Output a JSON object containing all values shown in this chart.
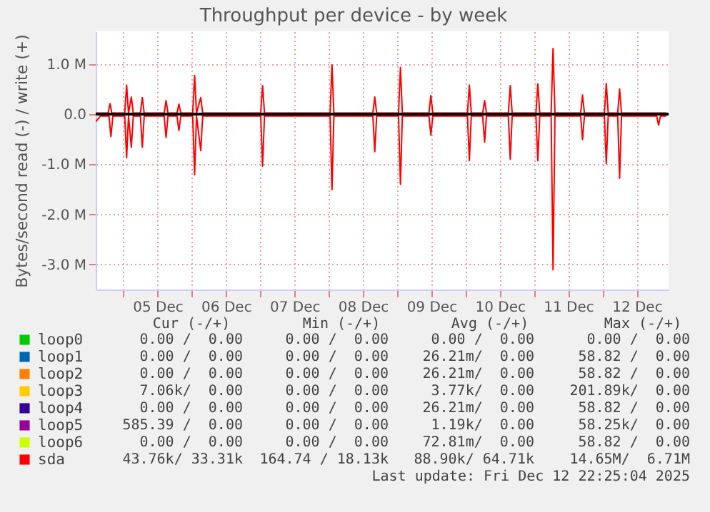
{
  "chart_data": {
    "type": "line",
    "title": "Throughput per device - by week",
    "ylabel": "Bytes/second read (-) / write (+)",
    "xlim": [
      "2025-12-04T14:20",
      "2025-12-12T23:10"
    ],
    "xticks": [
      {
        "value": "2025-12-05T00:00",
        "label": null
      },
      {
        "value": "2025-12-05T12:00",
        "label": "05 Dec"
      },
      {
        "value": "2025-12-06T00:00",
        "label": null
      },
      {
        "value": "2025-12-06T12:00",
        "label": "06 Dec"
      },
      {
        "value": "2025-12-07T00:00",
        "label": null
      },
      {
        "value": "2025-12-07T12:00",
        "label": "07 Dec"
      },
      {
        "value": "2025-12-08T00:00",
        "label": null
      },
      {
        "value": "2025-12-08T12:00",
        "label": "08 Dec"
      },
      {
        "value": "2025-12-09T00:00",
        "label": null
      },
      {
        "value": "2025-12-09T12:00",
        "label": "09 Dec"
      },
      {
        "value": "2025-12-10T00:00",
        "label": null
      },
      {
        "value": "2025-12-10T12:00",
        "label": "10 Dec"
      },
      {
        "value": "2025-12-11T00:00",
        "label": null
      },
      {
        "value": "2025-12-11T12:00",
        "label": "11 Dec"
      },
      {
        "value": "2025-12-12T00:00",
        "label": null
      },
      {
        "value": "2025-12-12T12:00",
        "label": "12 Dec"
      }
    ],
    "ylim": [
      -3500000,
      1650000
    ],
    "yticks": [
      {
        "value": -3000000,
        "label": "-3.0 M"
      },
      {
        "value": -2000000,
        "label": "-2.0 M"
      },
      {
        "value": -1000000,
        "label": "-1.0 M"
      },
      {
        "value": 0,
        "label": "0.0"
      },
      {
        "value": 1000000,
        "label": "1.0 M"
      }
    ],
    "grid": true,
    "legend": "bottom left",
    "ref_lines": [
      {
        "axis": "y",
        "value": 0,
        "color": "#000000"
      }
    ],
    "series": [
      {
        "name": "loop0",
        "color": "#00cc00"
      },
      {
        "name": "loop1",
        "color": "#0066b3"
      },
      {
        "name": "loop2",
        "color": "#ff8000"
      },
      {
        "name": "loop3",
        "color": "#ffcc00"
      },
      {
        "name": "loop4",
        "color": "#330099"
      },
      {
        "name": "loop5",
        "color": "#990099"
      },
      {
        "name": "loop6",
        "color": "#ccff00"
      },
      {
        "name": "sda",
        "color": "#ff0000",
        "x": [
          "2025-12-04T14:20",
          "2025-12-04T18:40",
          "2025-12-04T19:20",
          "2025-12-04T20:00",
          "2025-12-05T00:30",
          "2025-12-05T01:10",
          "2025-12-05T01:50",
          "2025-12-05T02:50",
          "2025-12-05T03:30",
          "2025-12-05T06:00",
          "2025-12-05T06:40",
          "2025-12-05T07:20",
          "2025-12-05T14:20",
          "2025-12-05T15:00",
          "2025-12-05T15:40",
          "2025-12-05T18:50",
          "2025-12-05T19:30",
          "2025-12-05T20:10",
          "2025-12-06T00:20",
          "2025-12-06T01:00",
          "2025-12-06T01:40",
          "2025-12-06T03:10",
          "2025-12-06T03:50",
          "2025-12-07T00:10",
          "2025-12-07T00:50",
          "2025-12-07T01:30",
          "2025-12-08T00:30",
          "2025-12-08T01:10",
          "2025-12-08T01:50",
          "2025-12-08T15:30",
          "2025-12-08T16:10",
          "2025-12-08T16:50",
          "2025-12-09T00:30",
          "2025-12-09T01:10",
          "2025-12-09T01:50",
          "2025-12-09T11:10",
          "2025-12-09T11:50",
          "2025-12-09T12:30",
          "2025-12-10T00:40",
          "2025-12-10T01:20",
          "2025-12-10T02:00",
          "2025-12-10T06:00",
          "2025-12-10T06:40",
          "2025-12-10T07:20",
          "2025-12-10T15:00",
          "2025-12-10T15:40",
          "2025-12-10T16:20",
          "2025-12-11T00:40",
          "2025-12-11T01:20",
          "2025-12-11T02:00",
          "2025-12-11T06:00",
          "2025-12-11T06:40",
          "2025-12-11T07:20",
          "2025-12-11T16:20",
          "2025-12-11T17:00",
          "2025-12-11T17:40",
          "2025-12-12T00:40",
          "2025-12-12T01:20",
          "2025-12-12T02:00",
          "2025-12-12T05:20",
          "2025-12-12T06:00",
          "2025-12-12T06:40",
          "2025-12-12T22:20"
        ],
        "values": [
          20000,
          20000,
          210000,
          20000,
          20000,
          580000,
          20000,
          340000,
          20000,
          20000,
          330000,
          20000,
          20000,
          270000,
          20000,
          20000,
          200000,
          20000,
          20000,
          770000,
          20000,
          330000,
          20000,
          20000,
          570000,
          20000,
          20000,
          980000,
          20000,
          20000,
          340000,
          20000,
          20000,
          930000,
          20000,
          20000,
          370000,
          20000,
          20000,
          580000,
          20000,
          20000,
          270000,
          20000,
          20000,
          570000,
          20000,
          20000,
          600000,
          20000,
          20000,
          1310000,
          20000,
          20000,
          380000,
          20000,
          20000,
          610000,
          20000,
          20000,
          500000,
          20000,
          20000
        ]
      },
      {
        "color": "#ff0000",
        "x": [
          "2025-12-04T14:20",
          "2025-12-04T16:00",
          "2025-12-04T19:00",
          "2025-12-04T19:40",
          "2025-12-04T20:20",
          "2025-12-05T00:30",
          "2025-12-05T01:10",
          "2025-12-05T01:50",
          "2025-12-05T02:50",
          "2025-12-05T03:30",
          "2025-12-05T06:00",
          "2025-12-05T06:40",
          "2025-12-05T07:20",
          "2025-12-05T14:20",
          "2025-12-05T15:00",
          "2025-12-05T15:40",
          "2025-12-05T18:50",
          "2025-12-05T19:30",
          "2025-12-05T20:10",
          "2025-12-06T00:20",
          "2025-12-06T01:00",
          "2025-12-06T01:40",
          "2025-12-06T03:10",
          "2025-12-06T03:50",
          "2025-12-07T00:10",
          "2025-12-07T00:50",
          "2025-12-07T01:30",
          "2025-12-08T00:30",
          "2025-12-08T01:10",
          "2025-12-08T01:50",
          "2025-12-08T15:30",
          "2025-12-08T16:10",
          "2025-12-08T16:50",
          "2025-12-09T00:30",
          "2025-12-09T01:10",
          "2025-12-09T01:50",
          "2025-12-09T11:10",
          "2025-12-09T11:50",
          "2025-12-09T12:30",
          "2025-12-10T00:40",
          "2025-12-10T01:20",
          "2025-12-10T02:00",
          "2025-12-10T06:00",
          "2025-12-10T06:40",
          "2025-12-10T07:20",
          "2025-12-10T15:00",
          "2025-12-10T15:40",
          "2025-12-10T16:20",
          "2025-12-11T00:40",
          "2025-12-11T01:20",
          "2025-12-11T02:00",
          "2025-12-11T06:00",
          "2025-12-11T06:40",
          "2025-12-11T07:20",
          "2025-12-11T16:20",
          "2025-12-11T17:00",
          "2025-12-11T17:40",
          "2025-12-12T00:40",
          "2025-12-12T01:20",
          "2025-12-12T02:00",
          "2025-12-12T05:20",
          "2025-12-12T06:00",
          "2025-12-12T06:40",
          "2025-12-12T19:00",
          "2025-12-12T19:40",
          "2025-12-12T20:20",
          "2025-12-12T22:20"
        ],
        "values": [
          -150000,
          -40000,
          -40000,
          -450000,
          -40000,
          -40000,
          -870000,
          -40000,
          -660000,
          -40000,
          -40000,
          -660000,
          -40000,
          -40000,
          -470000,
          -40000,
          -40000,
          -330000,
          -40000,
          -40000,
          -1210000,
          -40000,
          -730000,
          -40000,
          -40000,
          -1040000,
          -40000,
          -40000,
          -1510000,
          -40000,
          -40000,
          -750000,
          -40000,
          -40000,
          -1400000,
          -40000,
          -40000,
          -420000,
          -40000,
          -40000,
          -930000,
          -40000,
          -40000,
          -560000,
          -40000,
          -40000,
          -900000,
          -40000,
          -40000,
          -930000,
          -40000,
          -40000,
          -3110000,
          -40000,
          -40000,
          -510000,
          -40000,
          -40000,
          -990000,
          -40000,
          -40000,
          -1280000,
          -40000,
          -40000,
          -220000,
          -40000,
          -40000
        ]
      }
    ],
    "annotations": [
      "Cur (-/+)",
      "Min (-/+)",
      "Avg (-/+)",
      "Max (-/+)",
      "0.00 /  0.00",
      "0.00 /  0.00",
      "0.00 /  0.00",
      "0.00 /  0.00",
      "0.00 /  0.00",
      "0.00 /  0.00",
      "26.21m/  0.00",
      "58.82 /  0.00",
      "0.00 /  0.00",
      "0.00 /  0.00",
      "26.21m/  0.00",
      "58.82 /  0.00",
      "7.06k/  0.00",
      "0.00 /  0.00",
      "3.77k/  0.00",
      "201.89k/  0.00",
      "0.00 /  0.00",
      "0.00 /  0.00",
      "26.21m/  0.00",
      "58.82 /  0.00",
      "585.39 /  0.00",
      "0.00 /  0.00",
      "1.19k/  0.00",
      "58.25k/  0.00",
      "0.00 /  0.00",
      "0.00 /  0.00",
      "72.81m/  0.00",
      "58.82 /  0.00",
      "43.76k/ 33.31k",
      "164.74 / 18.13k",
      "88.90k/ 64.71k",
      "14.65M/  6.71M",
      "Last update: Fri Dec 12 22:25:04 2025"
    ]
  }
}
